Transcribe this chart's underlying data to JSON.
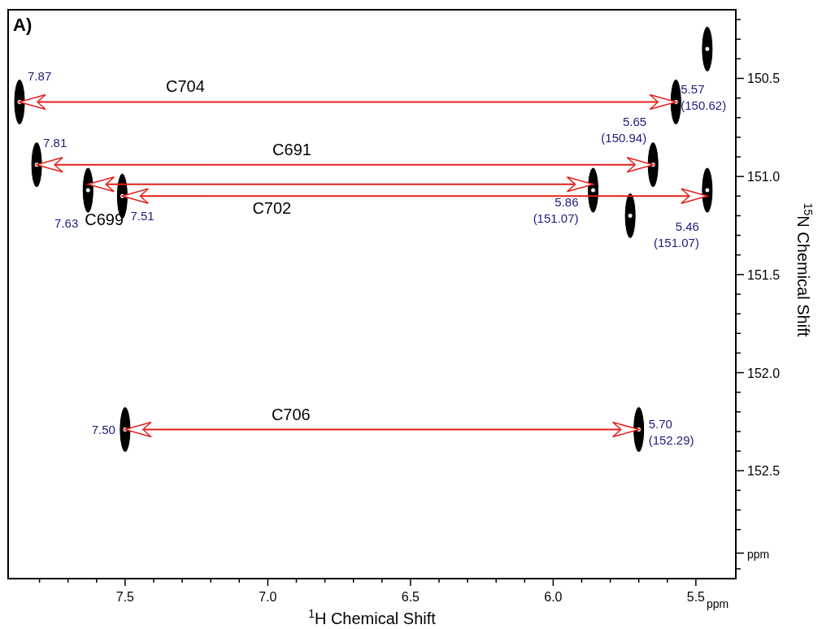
{
  "chart_data": {
    "type": "scatter",
    "xlabel": "$^{1}$H Chemical Shift",
    "ylabel": "$^{15}$N Chemical Shift",
    "xlim": [
      7.91,
      5.36
    ],
    "ylim": [
      153.05,
      150.15
    ],
    "xticks": [
      {
        "value": 5.5,
        "label": "5.5"
      },
      {
        "value": 5.6,
        "label": null
      },
      {
        "value": 5.7,
        "label": null
      },
      {
        "value": 5.8,
        "label": null
      },
      {
        "value": 5.9,
        "label": null
      },
      {
        "value": 6,
        "label": "6.0"
      },
      {
        "value": 6.1,
        "label": null
      },
      {
        "value": 6.2,
        "label": null
      },
      {
        "value": 6.3,
        "label": null
      },
      {
        "value": 6.4,
        "label": null
      },
      {
        "value": 6.5,
        "label": "6.5"
      },
      {
        "value": 6.6,
        "label": null
      },
      {
        "value": 6.7,
        "label": null
      },
      {
        "value": 6.8,
        "label": null
      },
      {
        "value": 6.9,
        "label": null
      },
      {
        "value": 7,
        "label": "7.0"
      },
      {
        "value": 7.1,
        "label": null
      },
      {
        "value": 7.2,
        "label": null
      },
      {
        "value": 7.3,
        "label": null
      },
      {
        "value": 7.4,
        "label": null
      },
      {
        "value": 7.5,
        "label": "7.5"
      },
      {
        "value": 7.6,
        "label": null
      },
      {
        "value": 7.7,
        "label": null
      },
      {
        "value": 7.8,
        "label": null
      }
    ],
    "yticks": [
      {
        "value": 150.2,
        "label": null
      },
      {
        "value": 150.3,
        "label": null
      },
      {
        "value": 150.4,
        "label": null
      },
      {
        "value": 150.5,
        "label": "150.5"
      },
      {
        "value": 150.6,
        "label": null
      },
      {
        "value": 150.7,
        "label": null
      },
      {
        "value": 150.8,
        "label": null
      },
      {
        "value": 150.9,
        "label": null
      },
      {
        "value": 151,
        "label": "151.0"
      },
      {
        "value": 151.1,
        "label": null
      },
      {
        "value": 151.2,
        "label": null
      },
      {
        "value": 151.3,
        "label": null
      },
      {
        "value": 151.4,
        "label": null
      },
      {
        "value": 151.5,
        "label": "151.5"
      },
      {
        "value": 151.6,
        "label": null
      },
      {
        "value": 151.7,
        "label": null
      },
      {
        "value": 151.8,
        "label": null
      },
      {
        "value": 151.9,
        "label": null
      },
      {
        "value": 152,
        "label": "152.0"
      },
      {
        "value": 152.1,
        "label": null
      },
      {
        "value": 152.2,
        "label": null
      },
      {
        "value": 152.3,
        "label": null
      },
      {
        "value": 152.4,
        "label": null
      },
      {
        "value": 152.5,
        "label": "152.5"
      },
      {
        "value": 152.6,
        "label": null
      },
      {
        "value": 152.7,
        "label": null
      },
      {
        "value": 152.8,
        "label": null
      },
      {
        "value": 152.92,
        "label": "ppm"
      },
      {
        "value": 153,
        "label": null
      }
    ],
    "grid": false,
    "series": [
      {
        "type": "scatter",
        "color": "#000000",
        "x": [
          7.87,
          7.81,
          7.63,
          7.51,
          7.5,
          5.86,
          5.73,
          5.7,
          5.65,
          5.57,
          5.46,
          5.46
        ],
        "values": [
          150.62,
          150.94,
          151.07,
          151.1,
          152.29,
          151.07,
          151.2,
          152.29,
          150.94,
          150.62,
          151.07,
          150.35
        ]
      },
      {
        "type": "line",
        "name": "C704",
        "color": "#e3211c",
        "x": [
          7.87,
          5.57
        ],
        "values": [
          150.62,
          150.62
        ]
      },
      {
        "type": "line",
        "name": "C691",
        "color": "#e3211c",
        "x": [
          7.81,
          5.65
        ],
        "values": [
          150.94,
          150.94
        ]
      },
      {
        "type": "line",
        "name": "C699",
        "color": "#e3211c",
        "x": [
          7.63,
          5.86
        ],
        "values": [
          151.04,
          151.04
        ]
      },
      {
        "type": "line",
        "name": "C702",
        "color": "#e3211c",
        "x": [
          7.51,
          5.46
        ],
        "values": [
          151.1,
          151.1
        ]
      },
      {
        "type": "line",
        "name": "C706",
        "color": "#e3211c",
        "x": [
          7.5,
          5.7
        ],
        "values": [
          152.29,
          152.29
        ]
      }
    ],
    "annotations": [
      "A)",
      "ppm",
      {
        "text": "7.87",
        "x": 7.87,
        "y": 150.62
      },
      {
        "text": "7.81",
        "x": 7.81,
        "y": 150.94
      },
      {
        "text": "7.63",
        "x": 7.63,
        "y": 151.07
      },
      {
        "text": "7.51",
        "x": 7.51,
        "y": 151.1
      },
      {
        "text": "7.50",
        "x": 7.5,
        "y": 152.29
      },
      {
        "text": "5.86 (151.07)",
        "x": 5.86,
        "y": 151.07
      },
      {
        "text": "5.65 (150.94)",
        "x": 5.65,
        "y": 150.94
      },
      {
        "text": "5.57 (150.62)",
        "x": 5.57,
        "y": 150.62
      },
      {
        "text": "5.46 (151.07)",
        "x": 5.46,
        "y": 151.07
      },
      {
        "text": "5.70 (152.29)",
        "x": 5.7,
        "y": 152.29
      }
    ]
  }
}
